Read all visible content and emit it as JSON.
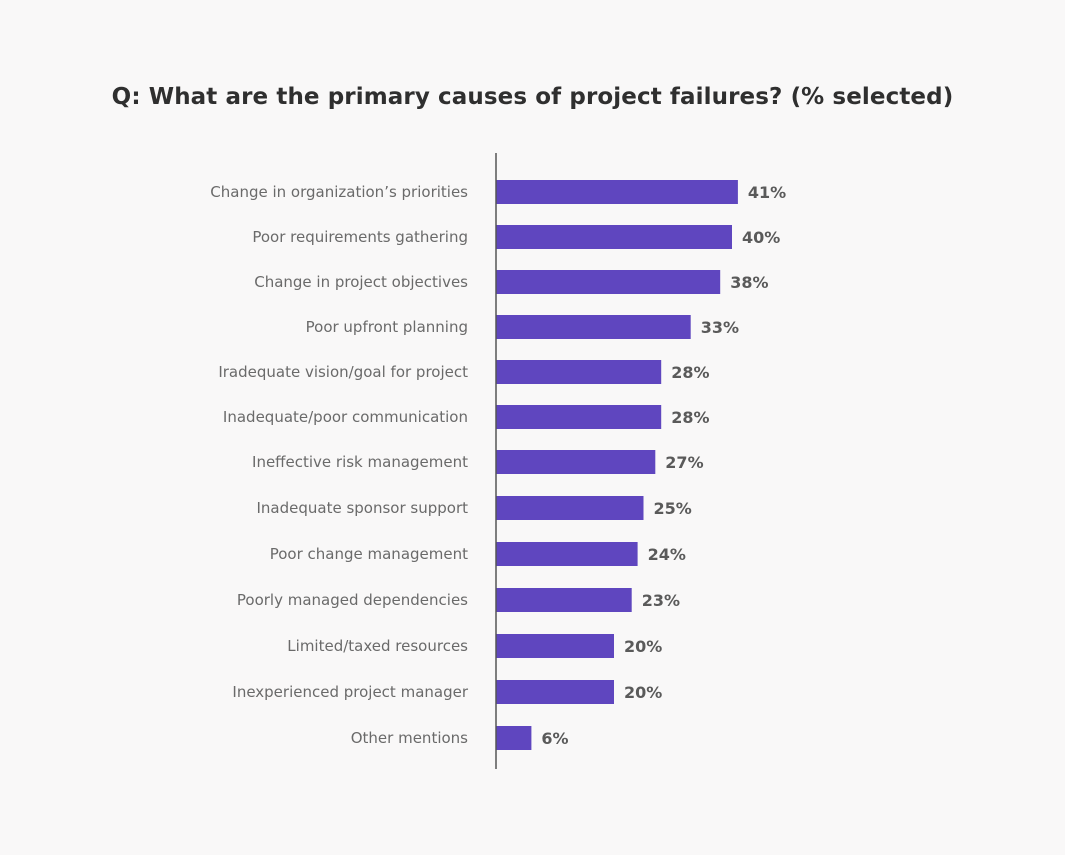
{
  "chart_data": {
    "type": "bar",
    "orientation": "horizontal",
    "title": "Q: What are the primary causes of project failures? (% selected)",
    "categories": [
      "Change in organization’s priorities",
      "Poor requirements gathering",
      "Change in project objectives",
      "Poor upfront planning",
      "Iradequate vision/goal for project",
      "Inadequate/poor communication",
      "Ineffective risk management",
      "Inadequate sponsor support",
      "Poor change management",
      "Poorly managed dependencies",
      "Limited/taxed resources",
      "Inexperienced project manager",
      "Other mentions"
    ],
    "values": [
      41,
      40,
      38,
      33,
      28,
      28,
      27,
      25,
      24,
      23,
      20,
      20,
      6
    ],
    "value_labels": [
      "41%",
      "40%",
      "38%",
      "33%",
      "28%",
      "28%",
      "27%",
      "25%",
      "24%",
      "23%",
      "20%",
      "20%",
      "6%"
    ],
    "bar_color": "#5f46bf",
    "xlim": [
      0,
      100
    ],
    "grid": false,
    "legend": "none"
  }
}
